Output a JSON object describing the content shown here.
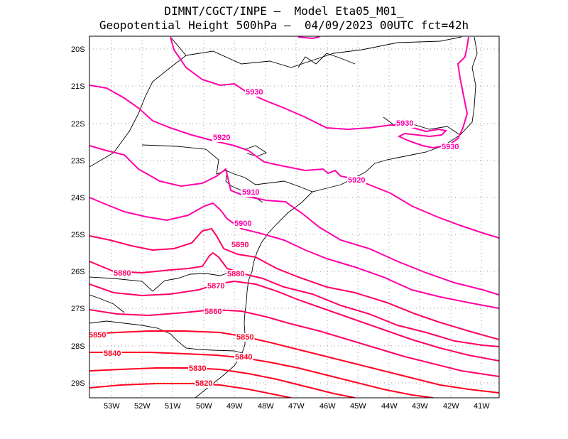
{
  "title": {
    "line1": "DIMNT/CGCT/INPE –  Model Eta05_M01_",
    "line2": "Geopotential Height 500hPa –  04/09/2023 00UTC fct=42h"
  },
  "axes": {
    "lat_labels": [
      "20S",
      "21S",
      "22S",
      "23S",
      "24S",
      "25S",
      "26S",
      "27S",
      "28S",
      "29S"
    ],
    "lon_labels": [
      "53W",
      "52W",
      "51W",
      "50W",
      "49W",
      "48W",
      "47W",
      "46W",
      "45W",
      "44W",
      "43W",
      "42W",
      "41W"
    ]
  },
  "colors": {
    "high": "#ff00aa",
    "mid": "#ff0066",
    "low": "#ff0022",
    "coast": "#000000"
  },
  "contour_labels": [
    {
      "text": "5930",
      "color": "high"
    },
    {
      "text": "5930",
      "color": "high"
    },
    {
      "text": "5930",
      "color": "high"
    },
    {
      "text": "5920",
      "color": "high"
    },
    {
      "text": "5920",
      "color": "high"
    },
    {
      "text": "5910",
      "color": "high"
    },
    {
      "text": "5900",
      "color": "high"
    },
    {
      "text": "5890",
      "color": "mid"
    },
    {
      "text": "5880",
      "color": "mid"
    },
    {
      "text": "5880",
      "color": "mid"
    },
    {
      "text": "5870",
      "color": "mid"
    },
    {
      "text": "5860",
      "color": "mid"
    },
    {
      "text": "5850",
      "color": "low"
    },
    {
      "text": "5850",
      "color": "low"
    },
    {
      "text": "5840",
      "color": "low"
    },
    {
      "text": "5840",
      "color": "low"
    },
    {
      "text": "5830",
      "color": "low"
    },
    {
      "text": "5820",
      "color": "low"
    }
  ]
}
